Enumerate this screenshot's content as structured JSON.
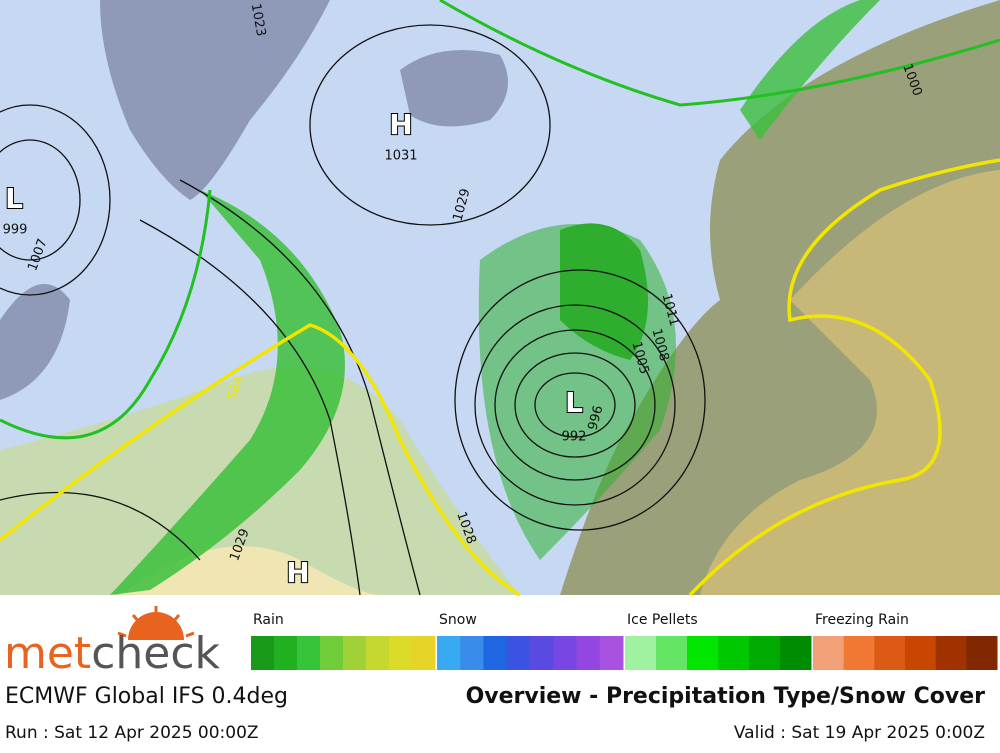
{
  "map": {
    "labels": [
      "H",
      "1031",
      "L",
      "999",
      "1007",
      "1023",
      "1029",
      "1029",
      "1028",
      "H",
      "L",
      "992",
      "996",
      "1011",
      "1008",
      "1005",
      "564",
      "1000"
    ]
  },
  "logo": {
    "part1": "met",
    "part2": "check"
  },
  "legend": {
    "groups": [
      {
        "name": "Rain",
        "colors": [
          "#189a18",
          "#20b020",
          "#38c438",
          "#70cc38",
          "#a0d238",
          "#c4d830",
          "#dcdc28",
          "#e6d428"
        ]
      },
      {
        "name": "Snow",
        "colors": [
          "#38aaf2",
          "#3a8cea",
          "#1e66e2",
          "#3c52e2",
          "#5a4ae2",
          "#7846e2",
          "#9446e2",
          "#a852e2"
        ]
      },
      {
        "name": "Ice Pellets",
        "colors": [
          "#a0f2a0",
          "#64e664",
          "#00e600",
          "#00c800",
          "#00aa00",
          "#008c00"
        ]
      },
      {
        "name": "Freezing Rain",
        "colors": [
          "#f2a078",
          "#f07832",
          "#dc5a14",
          "#c84600",
          "#a03200",
          "#822800"
        ]
      }
    ]
  },
  "footer": {
    "model": "ECMWF Global IFS 0.4deg",
    "title": "Overview - Precipitation Type/Snow Cover",
    "run": "Run : Sat 12 Apr 2025 00:00Z",
    "valid": "Valid : Sat 19 Apr 2025 0:00Z"
  }
}
